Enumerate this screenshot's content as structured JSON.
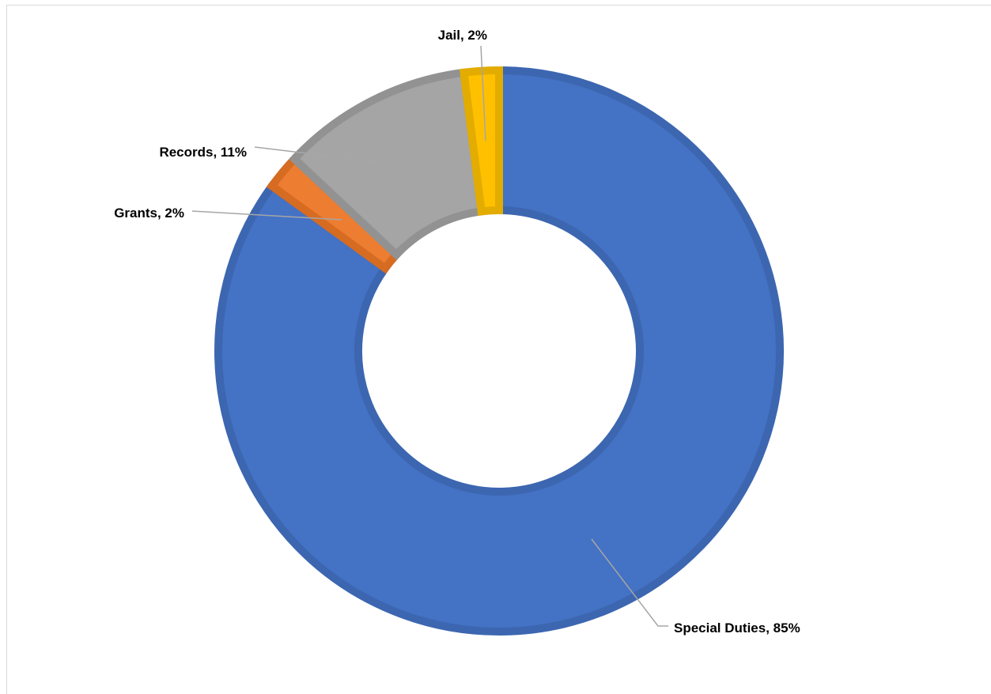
{
  "chart_data": {
    "type": "pie",
    "donut": true,
    "title": "",
    "slices": [
      {
        "category": "Special Duties",
        "value": 85,
        "label": "Special Duties, 85%",
        "color": "#4472C4",
        "stroke": "#3C66B0"
      },
      {
        "category": "Grants",
        "value": 2,
        "label": "Grants, 2%",
        "color": "#ED7D31",
        "stroke": "#D66B22"
      },
      {
        "category": "Records",
        "value": 11,
        "label": "Records, 11%",
        "color": "#A5A5A5",
        "stroke": "#929292"
      },
      {
        "category": "Jail",
        "value": 2,
        "label": "Jail, 2%",
        "color": "#FFC000",
        "stroke": "#E3AC00"
      }
    ],
    "start_angle_deg": 0,
    "direction": "clockwise",
    "legend": "none",
    "leader_line_color": "#A6A6A6"
  }
}
